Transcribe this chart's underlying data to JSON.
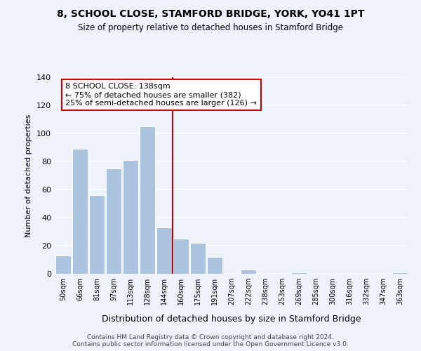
{
  "title": "8, SCHOOL CLOSE, STAMFORD BRIDGE, YORK, YO41 1PT",
  "subtitle": "Size of property relative to detached houses in Stamford Bridge",
  "xlabel": "Distribution of detached houses by size in Stamford Bridge",
  "ylabel": "Number of detached properties",
  "footer_line1": "Contains HM Land Registry data © Crown copyright and database right 2024.",
  "footer_line2": "Contains public sector information licensed under the Open Government Licence v3.0.",
  "bar_labels": [
    "50sqm",
    "66sqm",
    "81sqm",
    "97sqm",
    "113sqm",
    "128sqm",
    "144sqm",
    "160sqm",
    "175sqm",
    "191sqm",
    "207sqm",
    "222sqm",
    "238sqm",
    "253sqm",
    "269sqm",
    "285sqm",
    "300sqm",
    "316sqm",
    "332sqm",
    "347sqm",
    "363sqm"
  ],
  "bar_values": [
    13,
    89,
    56,
    75,
    81,
    105,
    33,
    25,
    22,
    12,
    0,
    3,
    0,
    0,
    1,
    0,
    0,
    0,
    0,
    0,
    1
  ],
  "bar_color": "#aac4e0",
  "bar_edge_color": "#ffffff",
  "vline_index": 6,
  "vline_color": "#cc0000",
  "ylim": [
    0,
    140
  ],
  "yticks": [
    0,
    20,
    40,
    60,
    80,
    100,
    120,
    140
  ],
  "annotation_title": "8 SCHOOL CLOSE: 138sqm",
  "annotation_line1": "← 75% of detached houses are smaller (382)",
  "annotation_line2": "25% of semi-detached houses are larger (126) →",
  "annotation_box_color": "#ffffff",
  "annotation_box_edge": "#cc0000",
  "background_color": "#eef2fb",
  "plot_background": "#eef2fb",
  "grid_color": "#ffffff"
}
